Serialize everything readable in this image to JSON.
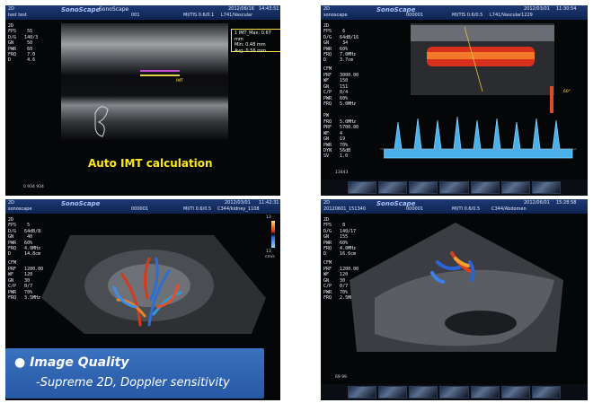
{
  "panels": {
    "tl": {
      "brand": "SonoScape",
      "brand2": "SonoScape",
      "hdr_left1": "2D",
      "hdr_left2": "test test",
      "hdr_num": "001",
      "hdr_mode": "MI/TIS  0.6/0.1",
      "hdr_probe": "L741/Vascular",
      "hdr_date": "2012/06/16",
      "hdr_time": "14:43:51",
      "params": "2D\nFPS    55\nD/G   140/3\nGN     50\nPWR    60\nFRQ    7.0\nD      4.6",
      "imt_box": [
        "1  IMT_Max: 0.67  mm",
        "   Min: 0.48  mm",
        "   Avg: 0.56  mm"
      ],
      "imt_label": "IMT",
      "depth_scale": "0   934   934",
      "caption": "Auto IMT calculation"
    },
    "tr": {
      "brand": "SonoScape",
      "hdr_left1": "2D",
      "hdr_left2": "sonoscape",
      "hdr_num": "000001",
      "hdr_mode": "MI/TIS  0.6/0.5",
      "hdr_probe": "L741/Vascular1229",
      "hdr_date": "2012/03/01",
      "hdr_time": "11:30:54",
      "params_2d": "2D\nFPS    6\nD/G   64dB/16\nGN     34\nPWR   60%\nFRQ   7.0MHz\nD     3.7cm",
      "params_cfm_title": "CFM",
      "params_cfm": "PRF   3000.00\nWF    150\nGN    151\nC/P   0/4\nPWR   60%\nFRQ   5.0MHz",
      "params_pw_title": "PW",
      "params_pw": "FRQ   5.0MHz\nPRF   5700.00\nWF    4\nGN    19\nPWR   70%\nDYN   56dB\nSV    1.0",
      "angle": "60°",
      "frame": "13443"
    },
    "bl": {
      "brand": "SonoScape",
      "hdr_left1": "2D",
      "hdr_left2": "sonoscape",
      "hdr_num": "000001",
      "hdr_mode": "MI/TI  0.6/0.5",
      "hdr_probe": "C344/kidney_1108",
      "hdr_date": "2012/03/01",
      "hdr_time": "11:42:31",
      "params_2d": "2D\nFPS    5\nD/G   64dB/8\nGN     40\nPWR   60%\nFRQ   4.0MHz\nD     14.8cm",
      "params_cfm_title": "CFM",
      "params_cfm": "PRF   1200.00\nWF    120\nGN    30\nC/P   0/7\nPWR   70%\nFRQ   3.5MHz",
      "scale_top": "13",
      "scale_bottom": "13",
      "unit": "cm/s"
    },
    "br": {
      "brand": "SonoScape",
      "hdr_left1": "2D",
      "hdr_left2": "20120601_151340",
      "hdr_num": "000001",
      "hdr_mode": "MI/TI  0.6/0.5",
      "hdr_probe": "C344/Abdomen",
      "hdr_date": "2012/06/01",
      "hdr_time": "15:28:58",
      "params_2d": "2D\nFPS    8\nD/G   140/17\nGN    155\nPWR   60%\nFRQ   4.0MHz\nD     16.6cm",
      "params_cfm_title": "CFM",
      "params_cfm": "PRF   1200.00\nWF    120\nGN    30\nC/P   0/7\nPWR   70%\nFRQ   2.5MHz",
      "frame": "69   99"
    }
  },
  "banner": {
    "title": "Image Quality",
    "subtitle": "-Supreme 2D, Doppler sensitivity"
  },
  "colors": {
    "banner": "#2f66b4",
    "caption": "#ffe81a",
    "header": "#1d3a75"
  }
}
